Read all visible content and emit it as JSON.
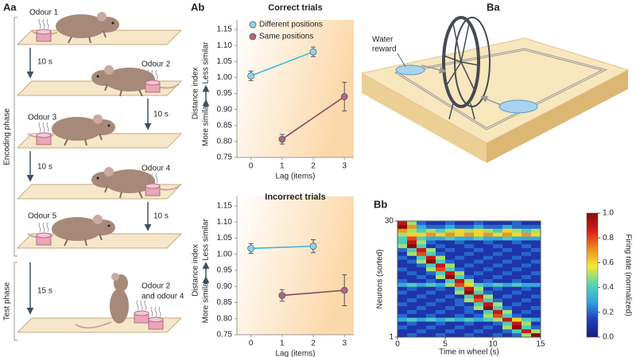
{
  "panels": {
    "aa": {
      "label": "Aa",
      "phases": [
        "Encoding phase",
        "Test phase"
      ],
      "odours": [
        "Odour 1",
        "Odour 2",
        "Odour 3",
        "Odour 4",
        "Odour 5"
      ],
      "test_odours": [
        "Odour 2",
        "and odour 4"
      ],
      "intervals": [
        "10 s",
        "10 s",
        "10 s",
        "10 s",
        "15 s"
      ]
    },
    "ab": {
      "label": "Ab"
    },
    "ba": {
      "label": "Ba",
      "water_reward": [
        "Water",
        "reward"
      ]
    },
    "bb": {
      "label": "Bb"
    }
  },
  "chart_data": [
    {
      "type": "line",
      "title": "Correct trials",
      "xlabel": "Lag (items)",
      "ylabel": "Distance index",
      "ylabel_low": "More similar",
      "ylabel_high": "Less similar",
      "xlim": [
        -0.45,
        3.3
      ],
      "xticks": [
        0,
        1,
        2,
        3
      ],
      "ylim": [
        0.75,
        1.15
      ],
      "yticks": [
        0.75,
        {
          "value": 0.8,
          "label": "0.80"
        },
        0.85,
        {
          "value": 0.9,
          "label": "0.90"
        },
        0.95,
        {
          "value": 1,
          "label": "1.00"
        },
        1.05,
        {
          "value": 1.1,
          "label": "1.10"
        },
        1.15
      ],
      "legend": "upper-left",
      "series": [
        {
          "name": "Different positions",
          "color": "#3db8df",
          "marker": "#8fd3ee",
          "x": [
            0,
            2
          ],
          "values": [
            1.005,
            1.08
          ],
          "errors": [
            0.015,
            0.015
          ]
        },
        {
          "name": "Same positions",
          "color": "#8e4563",
          "marker": "#b0657f",
          "x": [
            1,
            3
          ],
          "values": [
            0.807,
            0.94
          ],
          "errors": [
            0.015,
            0.045
          ]
        }
      ]
    },
    {
      "type": "line",
      "title": "Incorrect trials",
      "xlabel": "Lag (items)",
      "ylabel": "Distance index",
      "ylabel_low": "More similar",
      "ylabel_high": "Less similar",
      "xlim": [
        -0.45,
        3.3
      ],
      "xticks": [
        0,
        1,
        2,
        3
      ],
      "ylim": [
        0.75,
        1.15
      ],
      "yticks": [
        0.75,
        {
          "value": 0.8,
          "label": "0.80"
        },
        0.85,
        {
          "value": 0.9,
          "label": "0.90"
        },
        0.95,
        {
          "value": 1,
          "label": "1.00"
        },
        1.05,
        {
          "value": 1.1,
          "label": "1.10"
        },
        1.15
      ],
      "series": [
        {
          "color": "#3db8df",
          "marker": "#8fd3ee",
          "x": [
            0,
            2
          ],
          "values": [
            1.018,
            1.025
          ],
          "errors": [
            0.015,
            0.02
          ]
        },
        {
          "color": "#8e4563",
          "marker": "#b0657f",
          "x": [
            1,
            3
          ],
          "values": [
            0.872,
            0.888
          ],
          "errors": [
            0.018,
            0.048
          ]
        }
      ]
    },
    {
      "type": "heatmap",
      "xlabel": "Time in wheel (s)",
      "ylabel": "Neurons (sorted)",
      "colorbar_label": "Firing rate (normalized)",
      "xlim": [
        0,
        15
      ],
      "xticks": [
        0,
        5,
        10,
        15
      ],
      "ylim": [
        1,
        30
      ],
      "yticks": [
        1,
        30
      ],
      "clim": [
        0,
        1
      ],
      "cticks": [
        {
          "value": 0,
          "label": "0.0"
        },
        0.2,
        0.4,
        0.6,
        0.8,
        {
          "value": 1,
          "label": "1.0"
        }
      ],
      "colormap": [
        "#1a1a7a",
        "#1f3fbf",
        "#2fa6e0",
        "#57d6b0",
        "#f2e930",
        "#f08a1c",
        "#d81c1c",
        "#8b0a0a"
      ],
      "z": [
        [
          0.9,
          0.5,
          0.2,
          0.1,
          0.1,
          0.2,
          0.1,
          0.1,
          0.2,
          0.1,
          0.1,
          0.1,
          0.2,
          0.1,
          0.1
        ],
        [
          1.0,
          0.7,
          0.3,
          0.2,
          0.2,
          0.3,
          0.2,
          0.2,
          0.3,
          0.2,
          0.2,
          0.3,
          0.2,
          0.2,
          0.2
        ],
        [
          0.7,
          0.5,
          0.4,
          0.5,
          0.4,
          0.5,
          0.6,
          0.5,
          0.6,
          0.5,
          0.4,
          0.6,
          0.5,
          0.4,
          0.5
        ],
        [
          0.5,
          0.6,
          0.6,
          0.7,
          0.6,
          0.7,
          0.6,
          0.7,
          0.6,
          0.7,
          0.6,
          0.7,
          0.6,
          0.7,
          0.6
        ],
        [
          0.4,
          0.8,
          0.4,
          0.3,
          0.3,
          0.4,
          0.3,
          0.3,
          0.4,
          0.3,
          0.3,
          0.4,
          0.3,
          0.3,
          0.3
        ],
        [
          0.4,
          0.9,
          0.5,
          0.2,
          0.1,
          0.1,
          0.2,
          0.1,
          0.1,
          0.2,
          0.1,
          0.1,
          0.2,
          0.1,
          0.1
        ],
        [
          0.5,
          1.0,
          0.4,
          0.1,
          0.2,
          0.1,
          0.1,
          0.2,
          0.1,
          0.1,
          0.2,
          0.1,
          0.1,
          0.2,
          0.1
        ],
        [
          0.2,
          0.4,
          0.9,
          0.5,
          0.1,
          0.2,
          0.1,
          0.1,
          0.2,
          0.1,
          0.1,
          0.2,
          0.1,
          0.1,
          0.2
        ],
        [
          0.1,
          0.5,
          0.8,
          0.4,
          0.2,
          0.1,
          0.1,
          0.2,
          0.1,
          0.1,
          0.2,
          0.1,
          0.1,
          0.2,
          0.1
        ],
        [
          0.2,
          0.1,
          0.4,
          0.9,
          0.5,
          0.1,
          0.2,
          0.1,
          0.1,
          0.2,
          0.1,
          0.1,
          0.2,
          0.1,
          0.1
        ],
        [
          0.1,
          0.2,
          0.5,
          1.0,
          0.4,
          0.2,
          0.1,
          0.1,
          0.2,
          0.1,
          0.1,
          0.2,
          0.1,
          0.1,
          0.2
        ],
        [
          0.1,
          0.1,
          0.2,
          0.4,
          0.9,
          0.5,
          0.1,
          0.2,
          0.1,
          0.1,
          0.2,
          0.1,
          0.1,
          0.2,
          0.1
        ],
        [
          0.2,
          0.1,
          0.1,
          0.5,
          0.8,
          0.4,
          0.2,
          0.1,
          0.1,
          0.2,
          0.1,
          0.1,
          0.2,
          0.1,
          0.1
        ],
        [
          0.1,
          0.2,
          0.1,
          0.2,
          0.4,
          0.9,
          0.5,
          0.1,
          0.2,
          0.1,
          0.1,
          0.2,
          0.1,
          0.1,
          0.2
        ],
        [
          0.1,
          0.1,
          0.2,
          0.1,
          0.5,
          1.0,
          0.4,
          0.2,
          0.1,
          0.1,
          0.2,
          0.1,
          0.1,
          0.2,
          0.1
        ],
        [
          0.2,
          0.1,
          0.1,
          0.2,
          0.1,
          0.4,
          0.9,
          0.5,
          0.1,
          0.2,
          0.1,
          0.1,
          0.2,
          0.1,
          0.1
        ],
        [
          0.3,
          0.4,
          0.3,
          0.4,
          0.3,
          0.5,
          0.8,
          0.6,
          0.4,
          0.3,
          0.4,
          0.3,
          0.4,
          0.3,
          0.3
        ],
        [
          0.1,
          0.2,
          0.1,
          0.1,
          0.2,
          0.1,
          0.4,
          0.9,
          0.5,
          0.1,
          0.2,
          0.1,
          0.1,
          0.2,
          0.1
        ],
        [
          0.2,
          0.1,
          0.1,
          0.2,
          0.1,
          0.1,
          0.5,
          1.0,
          0.4,
          0.2,
          0.1,
          0.1,
          0.2,
          0.1,
          0.1
        ],
        [
          0.1,
          0.1,
          0.2,
          0.1,
          0.1,
          0.2,
          0.1,
          0.4,
          0.9,
          0.5,
          0.1,
          0.2,
          0.1,
          0.1,
          0.2
        ],
        [
          0.1,
          0.2,
          0.1,
          0.1,
          0.2,
          0.1,
          0.2,
          0.5,
          0.8,
          0.4,
          0.2,
          0.1,
          0.1,
          0.2,
          0.1
        ],
        [
          0.2,
          0.1,
          0.1,
          0.2,
          0.1,
          0.1,
          0.2,
          0.1,
          0.4,
          0.9,
          0.5,
          0.1,
          0.2,
          0.1,
          0.1
        ],
        [
          0.1,
          0.1,
          0.2,
          0.1,
          0.1,
          0.2,
          0.1,
          0.2,
          0.5,
          1.0,
          0.4,
          0.2,
          0.1,
          0.1,
          0.2
        ],
        [
          0.1,
          0.2,
          0.1,
          0.1,
          0.2,
          0.1,
          0.1,
          0.2,
          0.1,
          0.4,
          0.9,
          0.5,
          0.1,
          0.2,
          0.1
        ],
        [
          0.2,
          0.1,
          0.1,
          0.2,
          0.1,
          0.1,
          0.2,
          0.1,
          0.2,
          0.5,
          0.8,
          0.4,
          0.2,
          0.1,
          0.1
        ],
        [
          0.3,
          0.4,
          0.3,
          0.4,
          0.3,
          0.4,
          0.3,
          0.4,
          0.3,
          0.4,
          0.5,
          0.9,
          0.6,
          0.4,
          0.3
        ],
        [
          0.1,
          0.2,
          0.1,
          0.1,
          0.2,
          0.1,
          0.1,
          0.2,
          0.1,
          0.1,
          0.2,
          0.4,
          0.9,
          0.5,
          0.1
        ],
        [
          0.2,
          0.1,
          0.1,
          0.2,
          0.1,
          0.1,
          0.2,
          0.1,
          0.1,
          0.2,
          0.1,
          0.5,
          1.0,
          0.4,
          0.2
        ],
        [
          0.1,
          0.1,
          0.2,
          0.1,
          0.1,
          0.2,
          0.1,
          0.1,
          0.2,
          0.1,
          0.1,
          0.2,
          0.4,
          0.9,
          0.5
        ],
        [
          0.1,
          0.2,
          0.1,
          0.1,
          0.2,
          0.1,
          0.1,
          0.2,
          0.1,
          0.1,
          0.2,
          0.1,
          0.2,
          0.5,
          1.0
        ]
      ]
    }
  ]
}
